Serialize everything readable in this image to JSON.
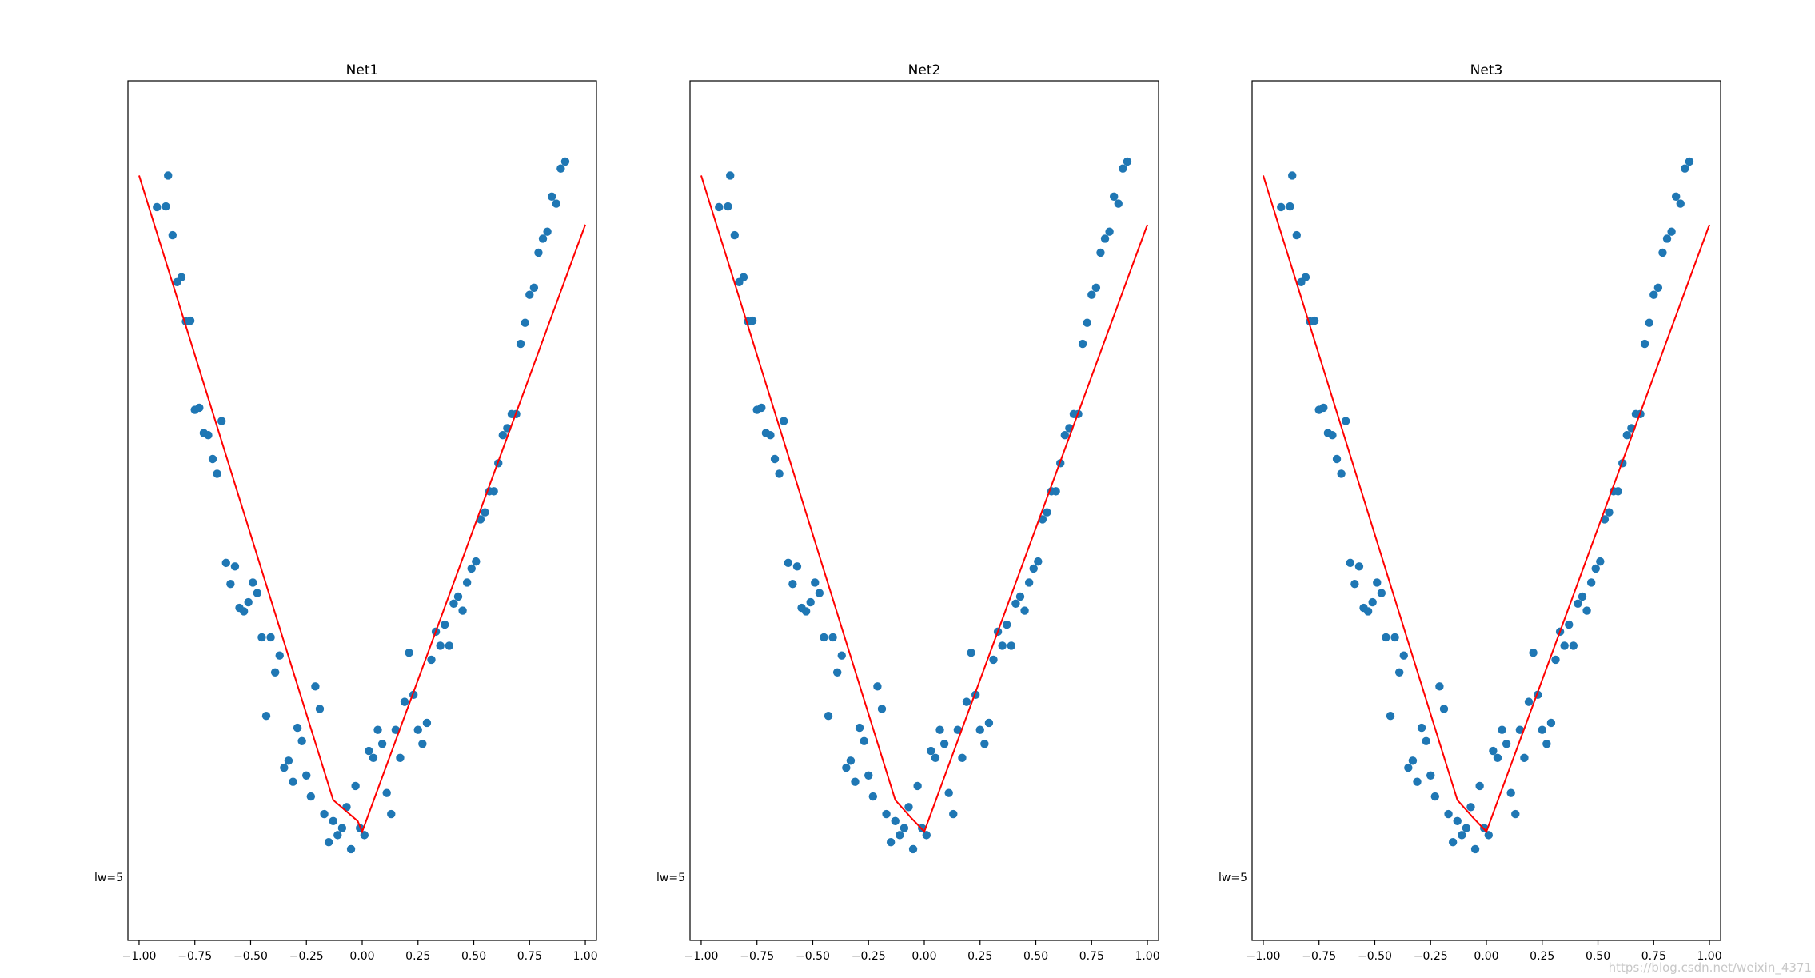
{
  "chart_data": [
    {
      "type": "scatter",
      "title": "Net1",
      "xlabel": "",
      "ylabel": "",
      "xlim": [
        -1.05,
        1.05
      ],
      "ylim": [
        -0.09,
        1.135
      ],
      "xticks": [
        -1.0,
        -0.75,
        -0.5,
        -0.25,
        0.0,
        0.25,
        0.5,
        0.75,
        1.0
      ],
      "xtick_labels": [
        "−1.00",
        "−0.75",
        "−0.50",
        "−0.25",
        "0.00",
        "0.25",
        "0.50",
        "0.75",
        "1.00"
      ],
      "text_annotation": {
        "text": "lw=5",
        "x": -1.05,
        "y": 0.0
      },
      "series": [
        {
          "name": "data",
          "kind": "scatter",
          "color": "#1f77b4",
          "x": [
            -0.92,
            -0.88,
            -0.87,
            -0.85,
            -0.83,
            -0.81,
            -0.79,
            -0.77,
            -0.75,
            -0.73,
            -0.71,
            -0.69,
            -0.67,
            -0.65,
            -0.63,
            -0.61,
            -0.59,
            -0.57,
            -0.55,
            -0.53,
            -0.51,
            -0.49,
            -0.47,
            -0.45,
            -0.43,
            -0.41,
            -0.39,
            -0.37,
            -0.35,
            -0.33,
            -0.31,
            -0.29,
            -0.27,
            -0.25,
            -0.23,
            -0.21,
            -0.19,
            -0.17,
            -0.15,
            -0.13,
            -0.11,
            -0.09,
            -0.07,
            -0.05,
            -0.03,
            -0.01,
            0.01,
            0.03,
            0.05,
            0.07,
            0.09,
            0.11,
            0.13,
            0.15,
            0.17,
            0.19,
            0.21,
            0.23,
            0.25,
            0.27,
            0.29,
            0.31,
            0.33,
            0.35,
            0.37,
            0.39,
            0.41,
            0.43,
            0.45,
            0.47,
            0.49,
            0.51,
            0.53,
            0.55,
            0.57,
            0.59,
            0.61,
            0.63,
            0.65,
            0.67,
            0.69,
            0.71,
            0.73,
            0.75,
            0.77,
            0.79,
            0.81,
            0.83,
            0.85,
            0.87,
            0.89,
            0.91
          ],
          "y": [
            0.955,
            0.956,
            1.0,
            0.915,
            0.848,
            0.855,
            0.792,
            0.793,
            0.666,
            0.669,
            0.633,
            0.63,
            0.596,
            0.575,
            0.65,
            0.448,
            0.418,
            0.443,
            0.384,
            0.379,
            0.392,
            0.42,
            0.405,
            0.342,
            0.23,
            0.342,
            0.292,
            0.316,
            0.156,
            0.166,
            0.136,
            0.213,
            0.194,
            0.145,
            0.115,
            0.272,
            0.24,
            0.09,
            0.05,
            0.08,
            0.06,
            0.07,
            0.1,
            0.04,
            0.13,
            0.07,
            0.06,
            0.18,
            0.17,
            0.21,
            0.19,
            0.12,
            0.09,
            0.21,
            0.17,
            0.25,
            0.32,
            0.26,
            0.21,
            0.19,
            0.22,
            0.31,
            0.35,
            0.33,
            0.36,
            0.33,
            0.39,
            0.4,
            0.38,
            0.42,
            0.44,
            0.45,
            0.51,
            0.52,
            0.55,
            0.55,
            0.59,
            0.63,
            0.64,
            0.66,
            0.66,
            0.76,
            0.79,
            0.83,
            0.84,
            0.89,
            0.91,
            0.92,
            0.97,
            0.96,
            1.01,
            1.02
          ]
        },
        {
          "name": "fit",
          "kind": "line",
          "color": "#ff0000",
          "x": [
            -1.0,
            -0.13,
            -0.02,
            0.0,
            1.0
          ],
          "y": [
            1.0,
            0.11,
            0.08,
            0.065,
            0.93
          ]
        }
      ]
    },
    {
      "type": "scatter",
      "title": "Net2",
      "xlabel": "",
      "ylabel": "",
      "xlim": [
        -1.05,
        1.05
      ],
      "ylim": [
        -0.09,
        1.135
      ],
      "xticks": [
        -1.0,
        -0.75,
        -0.5,
        -0.25,
        0.0,
        0.25,
        0.5,
        0.75,
        1.0
      ],
      "xtick_labels": [
        "−1.00",
        "−0.75",
        "−0.50",
        "−0.25",
        "0.00",
        "0.25",
        "0.50",
        "0.75",
        "1.00"
      ],
      "text_annotation": {
        "text": "lw=5",
        "x": -1.05,
        "y": 0.0
      },
      "series": [
        {
          "name": "data",
          "kind": "scatter",
          "color": "#1f77b4",
          "x": [
            -0.92,
            -0.88,
            -0.87,
            -0.85,
            -0.83,
            -0.81,
            -0.79,
            -0.77,
            -0.75,
            -0.73,
            -0.71,
            -0.69,
            -0.67,
            -0.65,
            -0.63,
            -0.61,
            -0.59,
            -0.57,
            -0.55,
            -0.53,
            -0.51,
            -0.49,
            -0.47,
            -0.45,
            -0.43,
            -0.41,
            -0.39,
            -0.37,
            -0.35,
            -0.33,
            -0.31,
            -0.29,
            -0.27,
            -0.25,
            -0.23,
            -0.21,
            -0.19,
            -0.17,
            -0.15,
            -0.13,
            -0.11,
            -0.09,
            -0.07,
            -0.05,
            -0.03,
            -0.01,
            0.01,
            0.03,
            0.05,
            0.07,
            0.09,
            0.11,
            0.13,
            0.15,
            0.17,
            0.19,
            0.21,
            0.23,
            0.25,
            0.27,
            0.29,
            0.31,
            0.33,
            0.35,
            0.37,
            0.39,
            0.41,
            0.43,
            0.45,
            0.47,
            0.49,
            0.51,
            0.53,
            0.55,
            0.57,
            0.59,
            0.61,
            0.63,
            0.65,
            0.67,
            0.69,
            0.71,
            0.73,
            0.75,
            0.77,
            0.79,
            0.81,
            0.83,
            0.85,
            0.87,
            0.89,
            0.91
          ],
          "y": [
            0.955,
            0.956,
            1.0,
            0.915,
            0.848,
            0.855,
            0.792,
            0.793,
            0.666,
            0.669,
            0.633,
            0.63,
            0.596,
            0.575,
            0.65,
            0.448,
            0.418,
            0.443,
            0.384,
            0.379,
            0.392,
            0.42,
            0.405,
            0.342,
            0.23,
            0.342,
            0.292,
            0.316,
            0.156,
            0.166,
            0.136,
            0.213,
            0.194,
            0.145,
            0.115,
            0.272,
            0.24,
            0.09,
            0.05,
            0.08,
            0.06,
            0.07,
            0.1,
            0.04,
            0.13,
            0.07,
            0.06,
            0.18,
            0.17,
            0.21,
            0.19,
            0.12,
            0.09,
            0.21,
            0.17,
            0.25,
            0.32,
            0.26,
            0.21,
            0.19,
            0.22,
            0.31,
            0.35,
            0.33,
            0.36,
            0.33,
            0.39,
            0.4,
            0.38,
            0.42,
            0.44,
            0.45,
            0.51,
            0.52,
            0.55,
            0.55,
            0.59,
            0.63,
            0.64,
            0.66,
            0.66,
            0.76,
            0.79,
            0.83,
            0.84,
            0.89,
            0.91,
            0.92,
            0.97,
            0.96,
            1.01,
            1.02
          ]
        },
        {
          "name": "fit",
          "kind": "line",
          "color": "#ff0000",
          "x": [
            -1.0,
            -0.13,
            -0.06,
            0.0,
            1.0
          ],
          "y": [
            1.0,
            0.11,
            0.085,
            0.065,
            0.93
          ]
        }
      ]
    },
    {
      "type": "scatter",
      "title": "Net3",
      "xlabel": "",
      "ylabel": "",
      "xlim": [
        -1.05,
        1.05
      ],
      "ylim": [
        -0.09,
        1.135
      ],
      "xticks": [
        -1.0,
        -0.75,
        -0.5,
        -0.25,
        0.0,
        0.25,
        0.5,
        0.75,
        1.0
      ],
      "xtick_labels": [
        "−1.00",
        "−0.75",
        "−0.50",
        "−0.25",
        "0.00",
        "0.25",
        "0.50",
        "0.75",
        "1.00"
      ],
      "text_annotation": {
        "text": "lw=5",
        "x": -1.05,
        "y": 0.0
      },
      "series": [
        {
          "name": "data",
          "kind": "scatter",
          "color": "#1f77b4",
          "x": [
            -0.92,
            -0.88,
            -0.87,
            -0.85,
            -0.83,
            -0.81,
            -0.79,
            -0.77,
            -0.75,
            -0.73,
            -0.71,
            -0.69,
            -0.67,
            -0.65,
            -0.63,
            -0.61,
            -0.59,
            -0.57,
            -0.55,
            -0.53,
            -0.51,
            -0.49,
            -0.47,
            -0.45,
            -0.43,
            -0.41,
            -0.39,
            -0.37,
            -0.35,
            -0.33,
            -0.31,
            -0.29,
            -0.27,
            -0.25,
            -0.23,
            -0.21,
            -0.19,
            -0.17,
            -0.15,
            -0.13,
            -0.11,
            -0.09,
            -0.07,
            -0.05,
            -0.03,
            -0.01,
            0.01,
            0.03,
            0.05,
            0.07,
            0.09,
            0.11,
            0.13,
            0.15,
            0.17,
            0.19,
            0.21,
            0.23,
            0.25,
            0.27,
            0.29,
            0.31,
            0.33,
            0.35,
            0.37,
            0.39,
            0.41,
            0.43,
            0.45,
            0.47,
            0.49,
            0.51,
            0.53,
            0.55,
            0.57,
            0.59,
            0.61,
            0.63,
            0.65,
            0.67,
            0.69,
            0.71,
            0.73,
            0.75,
            0.77,
            0.79,
            0.81,
            0.83,
            0.85,
            0.87,
            0.89,
            0.91
          ],
          "y": [
            0.955,
            0.956,
            1.0,
            0.915,
            0.848,
            0.855,
            0.792,
            0.793,
            0.666,
            0.669,
            0.633,
            0.63,
            0.596,
            0.575,
            0.65,
            0.448,
            0.418,
            0.443,
            0.384,
            0.379,
            0.392,
            0.42,
            0.405,
            0.342,
            0.23,
            0.342,
            0.292,
            0.316,
            0.156,
            0.166,
            0.136,
            0.213,
            0.194,
            0.145,
            0.115,
            0.272,
            0.24,
            0.09,
            0.05,
            0.08,
            0.06,
            0.07,
            0.1,
            0.04,
            0.13,
            0.07,
            0.06,
            0.18,
            0.17,
            0.21,
            0.19,
            0.12,
            0.09,
            0.21,
            0.17,
            0.25,
            0.32,
            0.26,
            0.21,
            0.19,
            0.22,
            0.31,
            0.35,
            0.33,
            0.36,
            0.33,
            0.39,
            0.4,
            0.38,
            0.42,
            0.44,
            0.45,
            0.51,
            0.52,
            0.55,
            0.55,
            0.59,
            0.63,
            0.64,
            0.66,
            0.66,
            0.76,
            0.79,
            0.83,
            0.84,
            0.89,
            0.91,
            0.92,
            0.97,
            0.96,
            1.01,
            1.02
          ]
        },
        {
          "name": "fit",
          "kind": "line",
          "color": "#ff0000",
          "x": [
            -1.0,
            -0.13,
            -0.06,
            0.0,
            1.0
          ],
          "y": [
            1.0,
            0.11,
            0.085,
            0.065,
            0.93
          ]
        }
      ]
    }
  ],
  "watermark": "https://blog.csdn.net/weixin_4371"
}
